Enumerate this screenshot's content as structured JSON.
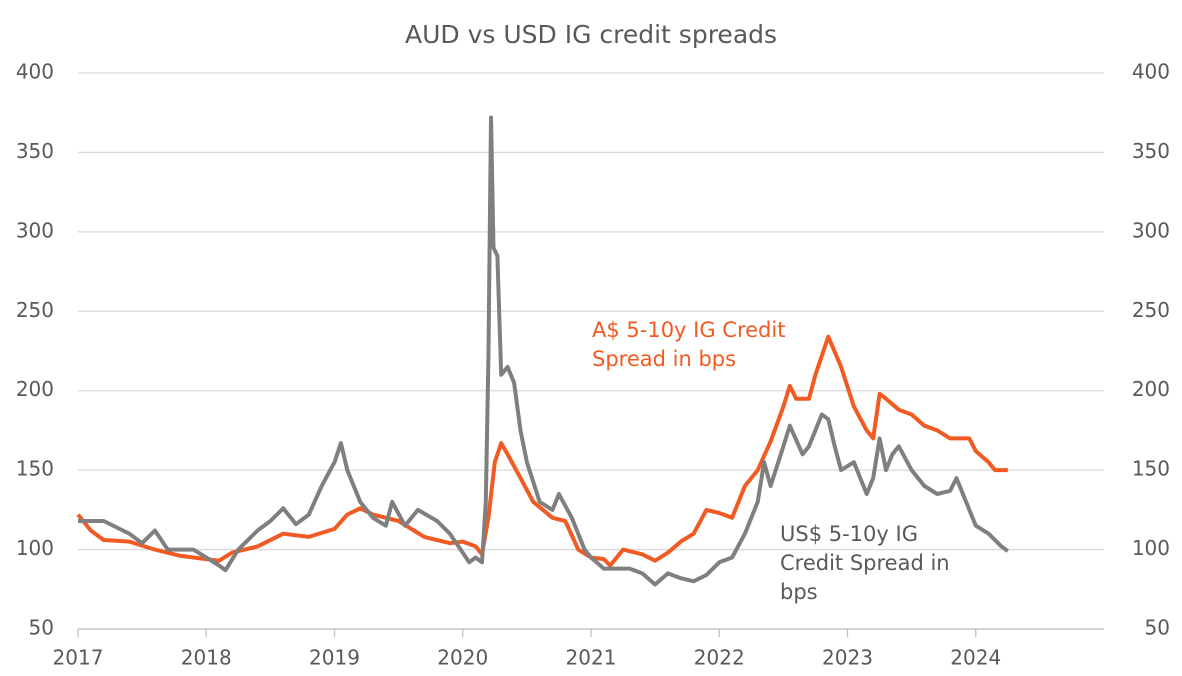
{
  "chart_data": {
    "type": "line",
    "title": "AUD vs USD IG credit spreads",
    "xlim": [
      2017,
      2025
    ],
    "xticks": [
      2017,
      2018,
      2019,
      2020,
      2021,
      2022,
      2023,
      2024
    ],
    "ylim": [
      50,
      400
    ],
    "yticks": [
      50,
      100,
      150,
      200,
      250,
      300,
      350,
      400
    ],
    "y2lim": [
      50,
      400
    ],
    "y2ticks": [
      50,
      100,
      150,
      200,
      250,
      300,
      350,
      400
    ],
    "grid": true,
    "series": [
      {
        "name": "A$ 5-10y IG Credit Spread in bps",
        "color": "#f15a22",
        "x": [
          2017.0,
          2017.1,
          2017.2,
          2017.4,
          2017.6,
          2017.8,
          2018.0,
          2018.1,
          2018.2,
          2018.4,
          2018.6,
          2018.8,
          2019.0,
          2019.1,
          2019.2,
          2019.3,
          2019.5,
          2019.7,
          2019.9,
          2020.0,
          2020.1,
          2020.15,
          2020.2,
          2020.25,
          2020.3,
          2020.35,
          2020.45,
          2020.55,
          2020.7,
          2020.8,
          2020.9,
          2021.0,
          2021.1,
          2021.15,
          2021.25,
          2021.4,
          2021.5,
          2021.6,
          2021.7,
          2021.8,
          2021.9,
          2022.0,
          2022.1,
          2022.2,
          2022.3,
          2022.4,
          2022.5,
          2022.55,
          2022.6,
          2022.7,
          2022.75,
          2022.85,
          2022.95,
          2023.05,
          2023.15,
          2023.2,
          2023.25,
          2023.3,
          2023.4,
          2023.5,
          2023.6,
          2023.7,
          2023.8,
          2023.95,
          2024.0,
          2024.1,
          2024.15,
          2024.25
        ],
        "values": [
          122,
          112,
          106,
          105,
          100,
          96,
          94,
          93,
          98,
          102,
          110,
          108,
          113,
          122,
          126,
          122,
          118,
          108,
          104,
          105,
          102,
          97,
          120,
          155,
          167,
          160,
          145,
          130,
          120,
          118,
          100,
          95,
          94,
          90,
          100,
          97,
          93,
          98,
          105,
          110,
          125,
          123,
          120,
          140,
          150,
          168,
          190,
          203,
          195,
          195,
          210,
          234,
          215,
          190,
          175,
          170,
          198,
          195,
          188,
          185,
          178,
          175,
          170,
          170,
          162,
          155,
          150,
          150
        ]
      },
      {
        "name": "US$ 5-10y IG Credit Spread in bps",
        "color": "#7f7f7f",
        "axis": "y2",
        "x": [
          2017.0,
          2017.2,
          2017.4,
          2017.5,
          2017.6,
          2017.7,
          2017.9,
          2018.0,
          2018.1,
          2018.15,
          2018.25,
          2018.4,
          2018.5,
          2018.6,
          2018.7,
          2018.8,
          2018.9,
          2019.0,
          2019.05,
          2019.1,
          2019.2,
          2019.3,
          2019.4,
          2019.45,
          2019.55,
          2019.65,
          2019.8,
          2019.9,
          2020.0,
          2020.05,
          2020.1,
          2020.15,
          2020.18,
          2020.2,
          2020.22,
          2020.24,
          2020.27,
          2020.3,
          2020.35,
          2020.4,
          2020.45,
          2020.5,
          2020.6,
          2020.7,
          2020.75,
          2020.85,
          2020.95,
          2021.0,
          2021.1,
          2021.2,
          2021.3,
          2021.4,
          2021.5,
          2021.6,
          2021.7,
          2021.8,
          2021.9,
          2022.0,
          2022.1,
          2022.2,
          2022.3,
          2022.35,
          2022.4,
          2022.5,
          2022.55,
          2022.65,
          2022.7,
          2022.8,
          2022.85,
          2022.9,
          2022.95,
          2023.05,
          2023.15,
          2023.2,
          2023.25,
          2023.3,
          2023.35,
          2023.4,
          2023.5,
          2023.6,
          2023.7,
          2023.8,
          2023.85,
          2023.9,
          2024.0,
          2024.1,
          2024.2,
          2024.25
        ],
        "values": [
          118,
          118,
          110,
          104,
          112,
          100,
          100,
          95,
          90,
          87,
          100,
          112,
          118,
          126,
          116,
          122,
          140,
          155,
          167,
          150,
          130,
          120,
          115,
          130,
          115,
          125,
          118,
          110,
          98,
          92,
          95,
          92,
          130,
          220,
          372,
          290,
          285,
          210,
          215,
          205,
          175,
          155,
          130,
          125,
          135,
          120,
          100,
          95,
          88,
          88,
          88,
          85,
          78,
          85,
          82,
          80,
          84,
          92,
          95,
          110,
          130,
          155,
          140,
          165,
          178,
          160,
          165,
          185,
          182,
          165,
          150,
          155,
          135,
          145,
          170,
          150,
          160,
          165,
          150,
          140,
          135,
          137,
          145,
          135,
          115,
          110,
          102,
          99
        ]
      }
    ]
  }
}
